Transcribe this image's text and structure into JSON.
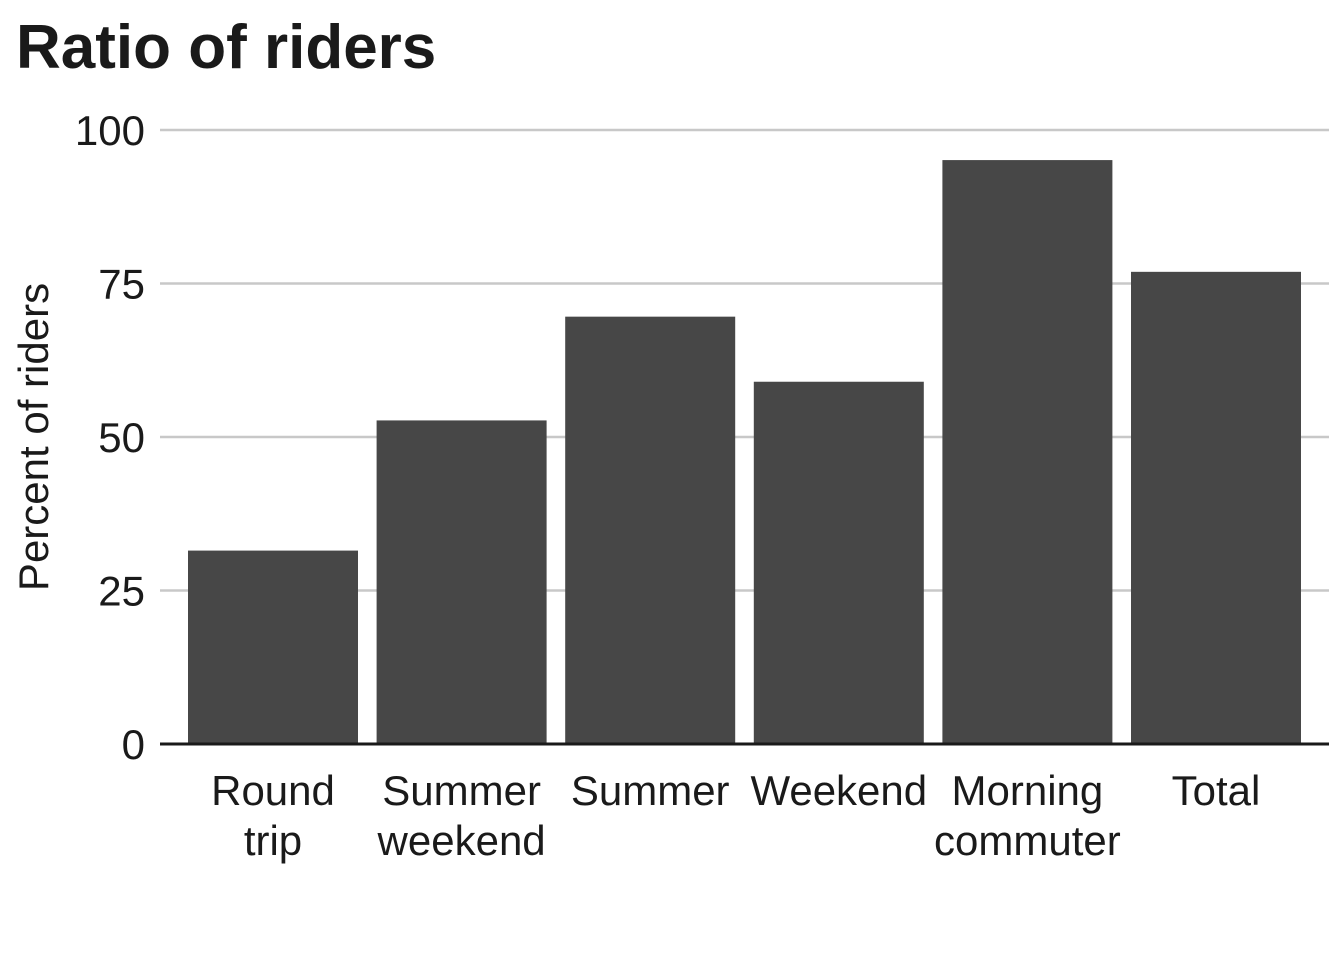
{
  "chart_data": {
    "type": "bar",
    "title": "Ratio of riders",
    "xlabel": "",
    "ylabel": "Percent of riders",
    "categories": [
      [
        "Round",
        "trip"
      ],
      [
        "Summer",
        "weekend"
      ],
      [
        "Summer"
      ],
      [
        "Weekend"
      ],
      [
        "Morning",
        "commuter"
      ],
      [
        "Total"
      ]
    ],
    "values": [
      31.5,
      52.7,
      69.6,
      59.0,
      95.1,
      76.9
    ],
    "ylim": [
      0,
      100
    ],
    "yticks": [
      0,
      25,
      50,
      75,
      100
    ],
    "ytick_labels": [
      "0",
      "25",
      "50",
      "75",
      "100"
    ],
    "grid": true,
    "colors": {
      "bar": "#474747",
      "grid": "#c8c8c8",
      "axis": "#1a1a1a",
      "text": "#1a1a1a"
    }
  }
}
